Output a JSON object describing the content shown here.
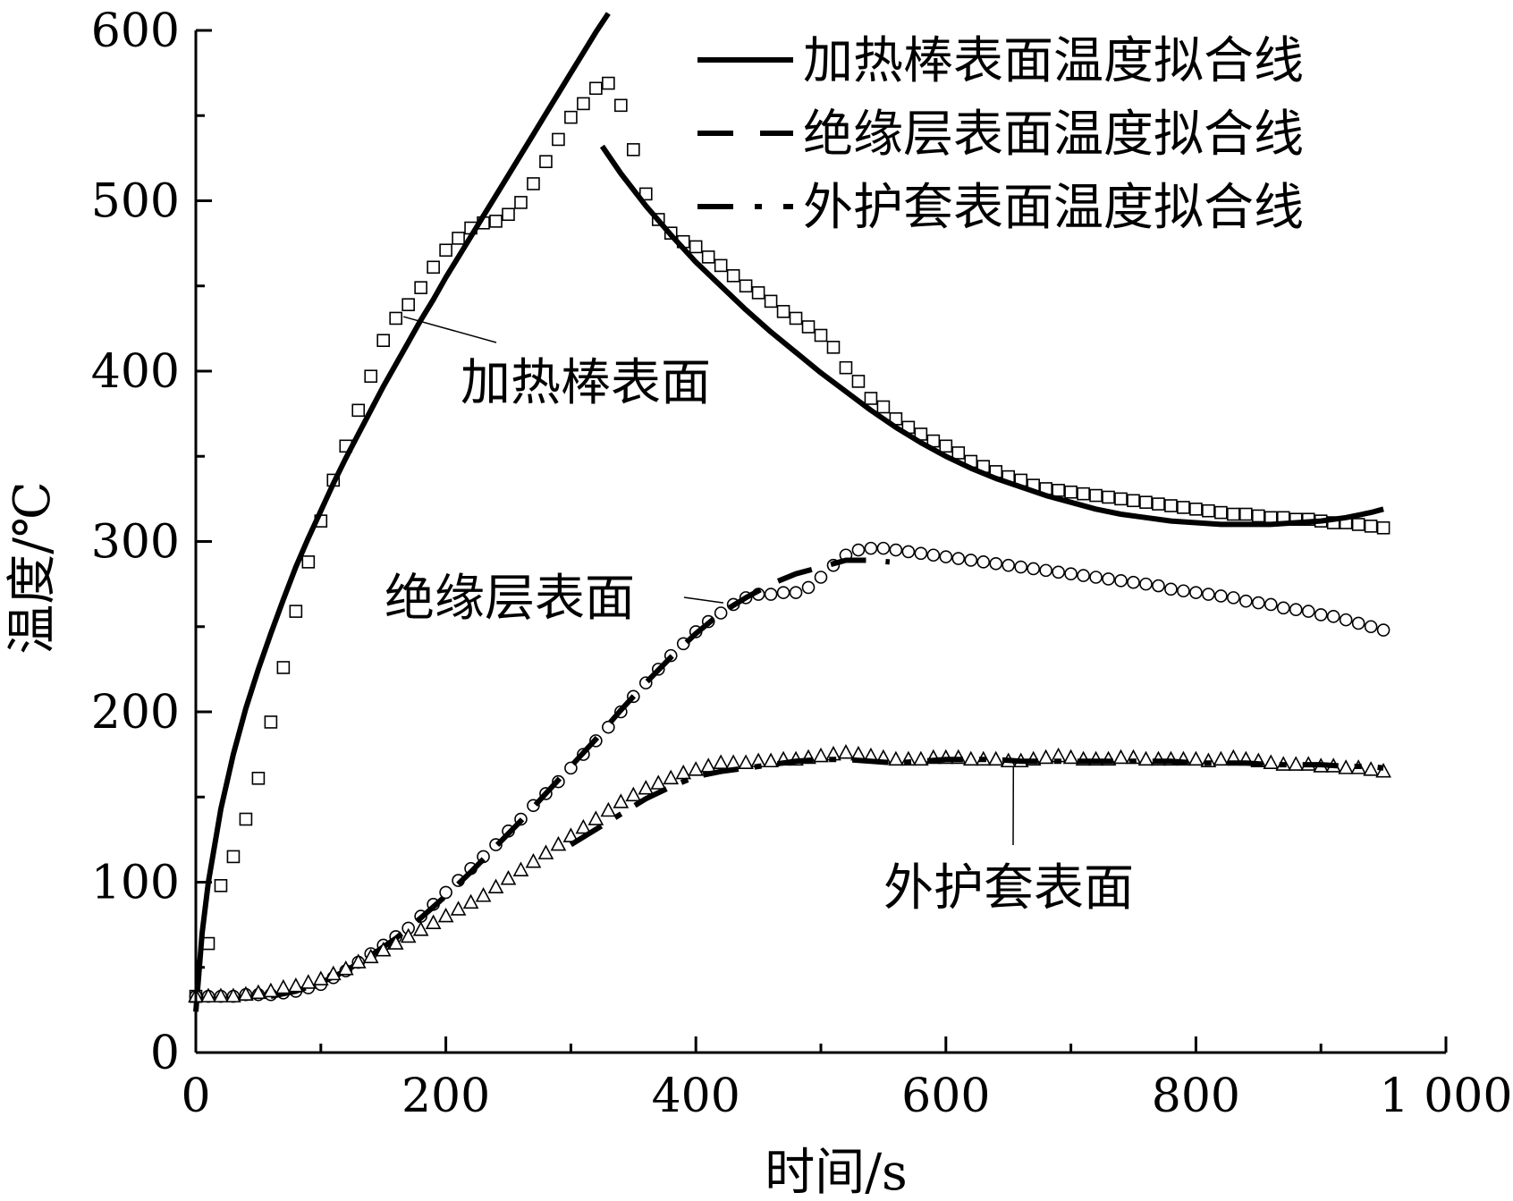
{
  "chart_data": {
    "type": "line",
    "title": "",
    "xlabel": "时间/s",
    "ylabel": "温度/℃",
    "xlim": [
      0,
      1000
    ],
    "ylim": [
      0,
      600
    ],
    "x_major_ticks": [
      0,
      200,
      400,
      600,
      800,
      1000
    ],
    "x_tick_labels": [
      "0",
      "200",
      "400",
      "600",
      "800",
      "1 000"
    ],
    "x_minor_ticks": [
      100,
      300,
      500,
      700,
      900
    ],
    "y_major_ticks": [
      0,
      100,
      200,
      300,
      400,
      500,
      600
    ],
    "y_tick_labels": [
      "0",
      "100",
      "200",
      "300",
      "400",
      "500",
      "600"
    ],
    "y_minor_ticks": [
      50,
      150,
      250,
      350,
      450,
      550
    ],
    "grid": false,
    "legend_position": "top-right",
    "legend": [
      {
        "label": "加热棒表面温度拟合线",
        "style": "solid"
      },
      {
        "label": "绝缘层表面温度拟合线",
        "style": "dashed"
      },
      {
        "label": "外护套表面温度拟合线",
        "style": "dash-dot"
      }
    ],
    "annotations": [
      {
        "text": "加热棒表面",
        "series": "heater_measured",
        "at": [
          166,
          432
        ]
      },
      {
        "text": "绝缘层表面",
        "series": "insulation_measured",
        "at": [
          422,
          264
        ]
      },
      {
        "text": "外护套表面",
        "series": "sheath_measured",
        "at": [
          654,
          168
        ]
      }
    ],
    "series": [
      {
        "id": "heater_measured",
        "marker": "square",
        "x": [
          0,
          10,
          20,
          30,
          40,
          50,
          60,
          70,
          80,
          90,
          100,
          110,
          120,
          130,
          140,
          150,
          160,
          170,
          180,
          190,
          200,
          210,
          220,
          230,
          240,
          250,
          260,
          270,
          280,
          290,
          300,
          310,
          320,
          330,
          340,
          350,
          360,
          370,
          380,
          390,
          400,
          410,
          420,
          430,
          440,
          450,
          460,
          470,
          480,
          490,
          500,
          510,
          520,
          530,
          540,
          550,
          560,
          570,
          580,
          590,
          600,
          610,
          620,
          630,
          640,
          650,
          660,
          670,
          680,
          690,
          700,
          710,
          720,
          730,
          740,
          750,
          760,
          770,
          780,
          790,
          800,
          810,
          820,
          830,
          840,
          850,
          860,
          870,
          880,
          890,
          900,
          910,
          920,
          930,
          940,
          950
        ],
        "y": [
          33,
          64,
          98,
          115,
          137,
          161,
          194,
          226,
          259,
          288,
          312,
          336,
          356,
          377,
          397,
          418,
          431,
          439,
          449,
          461,
          471,
          478,
          484,
          487,
          488,
          492,
          499,
          510,
          523,
          536,
          549,
          557,
          566,
          569,
          556,
          530,
          504,
          489,
          481,
          476,
          473,
          467,
          462,
          456,
          450,
          446,
          441,
          435,
          431,
          426,
          421,
          414,
          402,
          394,
          384,
          379,
          372,
          367,
          363,
          359,
          356,
          352,
          347,
          344,
          341,
          338,
          336,
          333,
          331,
          330,
          329,
          328,
          327,
          326,
          325,
          324,
          323,
          322,
          321,
          320,
          319,
          318,
          317,
          316,
          316,
          315,
          314,
          314,
          313,
          313,
          312,
          311,
          311,
          310,
          309,
          308
        ]
      },
      {
        "id": "heater_fit_rise",
        "style": "solid",
        "legend_index": 0,
        "x": [
          0,
          5,
          10,
          20,
          30,
          40,
          50,
          60,
          70,
          80,
          90,
          100,
          110,
          120,
          130,
          140,
          150,
          160,
          170,
          180,
          190,
          200,
          210,
          220,
          230,
          240,
          250,
          260,
          270,
          280,
          290,
          300,
          310,
          320,
          330
        ],
        "y": [
          24,
          70,
          100,
          143,
          175,
          202,
          225,
          246,
          266,
          285,
          302,
          318,
          334,
          349,
          363,
          377,
          391,
          404,
          417,
          430,
          442,
          455,
          467,
          479,
          491,
          503,
          515,
          527,
          539,
          551,
          563,
          575,
          587,
          599,
          610
        ]
      },
      {
        "id": "heater_fit_fall",
        "style": "solid",
        "legend_index": 0,
        "x": [
          325,
          340,
          360,
          380,
          400,
          420,
          440,
          460,
          480,
          500,
          520,
          540,
          560,
          580,
          600,
          620,
          640,
          660,
          680,
          700,
          720,
          740,
          760,
          780,
          800,
          820,
          840,
          860,
          880,
          900,
          920,
          940,
          950
        ],
        "y": [
          532,
          516,
          497,
          480,
          464,
          450,
          436,
          423,
          411,
          399,
          388,
          377,
          367,
          358,
          350,
          343,
          337,
          332,
          327,
          323,
          319,
          316,
          314,
          312,
          311,
          310,
          310,
          310,
          311,
          312,
          314,
          317,
          319
        ]
      },
      {
        "id": "insulation_measured",
        "marker": "circle",
        "x": [
          0,
          10,
          20,
          30,
          40,
          50,
          60,
          70,
          80,
          90,
          100,
          110,
          120,
          130,
          140,
          150,
          160,
          170,
          180,
          190,
          200,
          210,
          220,
          230,
          240,
          250,
          260,
          270,
          280,
          290,
          300,
          310,
          320,
          330,
          340,
          350,
          360,
          370,
          380,
          390,
          400,
          410,
          420,
          430,
          440,
          450,
          460,
          470,
          480,
          490,
          500,
          510,
          520,
          530,
          540,
          550,
          560,
          570,
          580,
          590,
          600,
          610,
          620,
          630,
          640,
          650,
          660,
          670,
          680,
          690,
          700,
          710,
          720,
          730,
          740,
          750,
          760,
          770,
          780,
          790,
          800,
          810,
          820,
          830,
          840,
          850,
          860,
          870,
          880,
          890,
          900,
          910,
          920,
          930,
          940,
          950
        ],
        "y": [
          33,
          33,
          33,
          33,
          34,
          34,
          34,
          35,
          36,
          38,
          40,
          44,
          48,
          53,
          58,
          63,
          68,
          73,
          80,
          87,
          94,
          101,
          108,
          115,
          122,
          130,
          137,
          145,
          152,
          159,
          167,
          175,
          183,
          191,
          200,
          209,
          217,
          225,
          233,
          240,
          247,
          253,
          258,
          263,
          267,
          269,
          269,
          270,
          270,
          273,
          279,
          286,
          292,
          295,
          296,
          296,
          295,
          294,
          293,
          292,
          291,
          290,
          289,
          288,
          287,
          286,
          285,
          284,
          283,
          282,
          281,
          280,
          279,
          278,
          277,
          276,
          275,
          274,
          272,
          271,
          270,
          269,
          268,
          267,
          265,
          264,
          263,
          261,
          260,
          259,
          257,
          256,
          254,
          252,
          250,
          248
        ]
      },
      {
        "id": "insulation_fit",
        "style": "dashed",
        "legend_index": 1,
        "x": [
          60,
          80,
          100,
          120,
          140,
          160,
          180,
          200,
          220,
          240,
          260,
          280,
          300,
          320,
          340,
          360,
          380,
          400,
          420,
          440,
          460,
          480,
          500,
          510,
          520,
          540,
          555
        ],
        "y": [
          33,
          36,
          41,
          48,
          57,
          67,
          79,
          92,
          106,
          121,
          136,
          152,
          168,
          184,
          201,
          217,
          232,
          246,
          258,
          267,
          275,
          281,
          285,
          287,
          289,
          289,
          288
        ]
      },
      {
        "id": "sheath_measured",
        "marker": "triangle",
        "x": [
          0,
          10,
          20,
          30,
          40,
          50,
          60,
          70,
          80,
          90,
          100,
          110,
          120,
          130,
          140,
          150,
          160,
          170,
          180,
          190,
          200,
          210,
          220,
          230,
          240,
          250,
          260,
          270,
          280,
          290,
          300,
          310,
          320,
          330,
          340,
          350,
          360,
          370,
          380,
          390,
          400,
          410,
          420,
          430,
          440,
          450,
          460,
          470,
          480,
          490,
          500,
          510,
          520,
          530,
          540,
          550,
          560,
          570,
          580,
          590,
          600,
          610,
          620,
          630,
          640,
          650,
          660,
          670,
          680,
          690,
          700,
          710,
          720,
          730,
          740,
          750,
          760,
          770,
          780,
          790,
          800,
          810,
          820,
          830,
          840,
          850,
          860,
          870,
          880,
          890,
          900,
          910,
          920,
          930,
          940,
          950
        ],
        "y": [
          33,
          33,
          33,
          33,
          34,
          35,
          36,
          38,
          39,
          41,
          43,
          46,
          49,
          53,
          56,
          60,
          64,
          68,
          72,
          76,
          80,
          84,
          88,
          92,
          97,
          102,
          107,
          112,
          117,
          122,
          127,
          132,
          137,
          142,
          147,
          151,
          155,
          158,
          161,
          164,
          166,
          168,
          170,
          170,
          170,
          171,
          171,
          172,
          172,
          173,
          174,
          175,
          176,
          175,
          174,
          173,
          172,
          172,
          172,
          173,
          173,
          173,
          172,
          172,
          172,
          171,
          171,
          172,
          173,
          174,
          173,
          172,
          172,
          172,
          173,
          173,
          172,
          172,
          172,
          172,
          172,
          171,
          172,
          173,
          172,
          171,
          170,
          169,
          169,
          169,
          168,
          168,
          167,
          167,
          166,
          165
        ]
      },
      {
        "id": "sheath_fit",
        "style": "dash-dot",
        "legend_index": 2,
        "x": [
          300,
          320,
          340,
          360,
          380,
          400,
          420,
          440,
          460,
          480,
          500,
          520,
          540,
          560,
          580,
          600,
          620,
          640,
          660,
          680,
          700,
          720,
          740,
          760,
          780,
          800,
          820,
          840,
          860,
          880,
          900,
          920,
          940,
          950
        ],
        "y": [
          122,
          131,
          140,
          149,
          156,
          162,
          165,
          167,
          169,
          171,
          172,
          172,
          171,
          170,
          171,
          172,
          172,
          172,
          171,
          171,
          171,
          171,
          171,
          171,
          171,
          170,
          170,
          170,
          169,
          169,
          169,
          168,
          168,
          167
        ]
      }
    ]
  }
}
